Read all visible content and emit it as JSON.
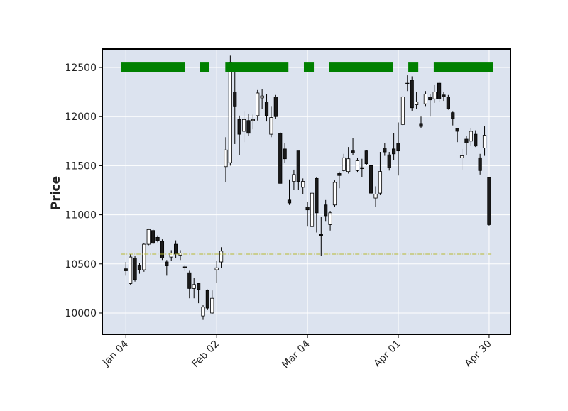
{
  "chart_data": {
    "type": "candlestick",
    "ylabel": "Price",
    "xlim": [
      -5.2,
      84.7
    ],
    "xticks": [
      {
        "value": 0,
        "label": "Jan 04"
      },
      {
        "value": 20,
        "label": "Feb 02"
      },
      {
        "value": 40,
        "label": "Mar 04"
      },
      {
        "value": 60,
        "label": "Apr 01"
      },
      {
        "value": 80,
        "label": "Apr 30"
      }
    ],
    "ylim": [
      9783,
      12688
    ],
    "yticks": [
      10000,
      10500,
      11000,
      11500,
      12000,
      12500
    ],
    "grid": true,
    "background": "#dce3ef",
    "up_color": "#ffffff",
    "down_color": "#1a1a1a",
    "open": [
      10450,
      10300,
      10560,
      10480,
      10440,
      10700,
      10840,
      10770,
      10730,
      10520,
      10570,
      10700,
      10590,
      10470,
      10410,
      10250,
      10300,
      9970,
      10230,
      10000,
      10440,
      10520,
      11490,
      11530,
      12250,
      11970,
      11850,
      11960,
      11960,
      12010,
      12190,
      12150,
      11820,
      12200,
      11830,
      11670,
      11150,
      11340,
      11650,
      11280,
      11080,
      10880,
      11370,
      10800,
      11100,
      10900,
      11100,
      11420,
      11450,
      11440,
      11650,
      11450,
      11480,
      11650,
      11500,
      11170,
      11220,
      11680,
      11610,
      11670,
      11730,
      11920,
      12340,
      12370,
      12120,
      11930,
      12130,
      12200,
      12180,
      12340,
      12220,
      12200,
      12040,
      11880,
      11580,
      11770,
      11750,
      11820,
      11580,
      11680,
      11380
    ],
    "high": [
      10520,
      10600,
      10580,
      10510,
      10710,
      10860,
      10850,
      10790,
      10750,
      10540,
      10640,
      10740,
      10640,
      10490,
      10430,
      10360,
      10310,
      10080,
      10240,
      10230,
      10530,
      10670,
      11790,
      12620,
      12470,
      12010,
      12050,
      12030,
      12020,
      12270,
      12280,
      12230,
      12100,
      12220,
      11840,
      11730,
      11360,
      11460,
      11650,
      11370,
      11130,
      11230,
      11380,
      10980,
      11150,
      11040,
      11350,
      11440,
      11620,
      11690,
      11780,
      11580,
      11570,
      11660,
      11500,
      11290,
      11640,
      11730,
      11640,
      11830,
      11940,
      12210,
      12420,
      12410,
      12250,
      12000,
      12260,
      12230,
      12320,
      12360,
      12250,
      12220,
      12050,
      11880,
      11670,
      11800,
      11880,
      11860,
      11620,
      11900,
      11380
    ],
    "low": [
      10380,
      10290,
      10320,
      10400,
      10420,
      10690,
      10700,
      10720,
      10540,
      10380,
      10530,
      10560,
      10540,
      10430,
      10150,
      10150,
      10100,
      9930,
      10030,
      9990,
      10310,
      10460,
      11330,
      11500,
      11720,
      11610,
      11740,
      11800,
      11870,
      11960,
      12080,
      11950,
      11790,
      11980,
      11320,
      11530,
      11100,
      11250,
      11250,
      11210,
      10880,
      10780,
      10820,
      10580,
      10930,
      10840,
      11080,
      11270,
      11440,
      11420,
      11610,
      11430,
      11380,
      11510,
      11210,
      11080,
      11200,
      11600,
      11450,
      11560,
      11400,
      11910,
      12260,
      12060,
      12080,
      11880,
      12100,
      12000,
      12140,
      12150,
      12160,
      12070,
      11910,
      11740,
      11460,
      11610,
      11700,
      11690,
      11410,
      11600,
      10890
    ],
    "close": [
      10430,
      10570,
      10340,
      10440,
      10700,
      10850,
      10710,
      10740,
      10560,
      10480,
      10610,
      10600,
      10610,
      10460,
      10250,
      10290,
      10240,
      10060,
      10050,
      10150,
      10460,
      10630,
      11660,
      12550,
      12100,
      11820,
      11970,
      11830,
      11970,
      12240,
      12210,
      12010,
      11990,
      12000,
      11320,
      11570,
      11120,
      11410,
      11340,
      11340,
      11050,
      11220,
      11020,
      10790,
      10990,
      11020,
      11330,
      11400,
      11580,
      11570,
      11630,
      11550,
      11470,
      11520,
      11220,
      11210,
      11440,
      11640,
      11480,
      11620,
      11650,
      12200,
      12330,
      12090,
      12150,
      11900,
      12230,
      12170,
      12250,
      12180,
      12200,
      12080,
      11980,
      11850,
      11600,
      11730,
      11850,
      11700,
      11450,
      11810,
      10900
    ],
    "bands": {
      "color": "#008000",
      "y": [
        12455,
        12550
      ],
      "ranges": [
        [
          -1,
          13
        ],
        [
          16.3,
          18.4
        ],
        [
          21.9,
          35.8
        ],
        [
          39.2,
          41.4
        ],
        [
          44.8,
          58.8
        ],
        [
          62.2,
          64.4
        ],
        [
          67.8,
          80.8
        ]
      ]
    },
    "hline": {
      "y": 10600,
      "x": [
        -1.1,
        80.5
      ],
      "color": "#b8b832",
      "style": "dashdot"
    }
  }
}
